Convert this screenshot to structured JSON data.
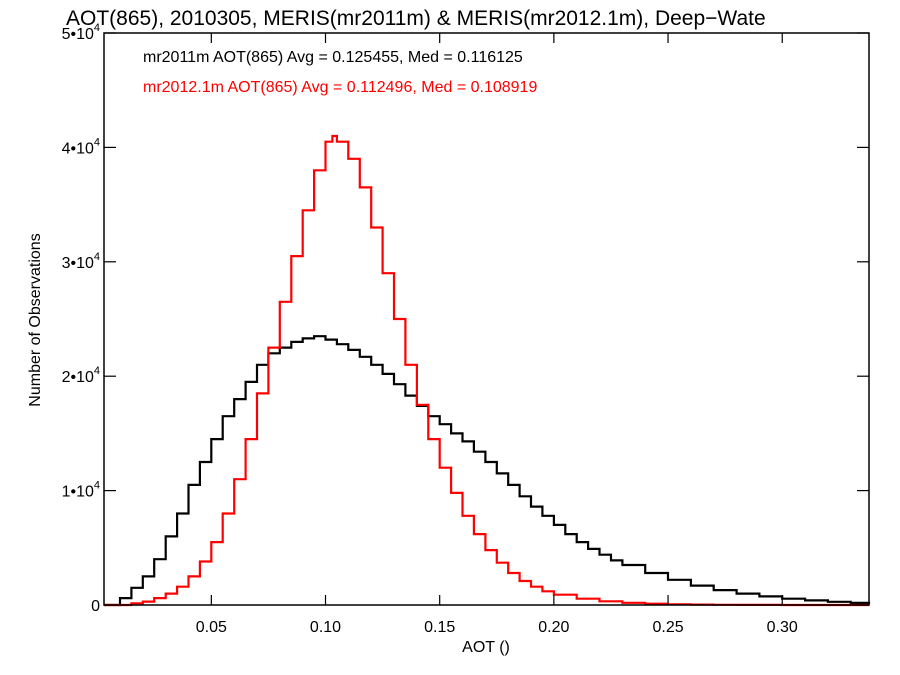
{
  "chart_data": {
    "type": "line",
    "title": "AOT(865), 2010305, MERIS(mr2011m) & MERIS(mr2012.1m), Deep−Wate",
    "xlabel": "AOT ()",
    "ylabel": "Number of Observations",
    "xlim": [
      0.003,
      0.338
    ],
    "ylim": [
      0,
      50000
    ],
    "x_ticks": [
      {
        "value": 0.05,
        "label": "0.05"
      },
      {
        "value": 0.1,
        "label": "0.10"
      },
      {
        "value": 0.15,
        "label": "0.15"
      },
      {
        "value": 0.2,
        "label": "0.20"
      },
      {
        "value": 0.25,
        "label": "0.25"
      },
      {
        "value": 0.3,
        "label": "0.30"
      }
    ],
    "y_ticks": [
      {
        "value": 0,
        "base": "0",
        "exp": ""
      },
      {
        "value": 10000,
        "base": "1•10",
        "exp": "4"
      },
      {
        "value": 20000,
        "base": "2•10",
        "exp": "4"
      },
      {
        "value": 30000,
        "base": "3•10",
        "exp": "4"
      },
      {
        "value": 40000,
        "base": "4•10",
        "exp": "4"
      },
      {
        "value": 50000,
        "base": "5•10",
        "exp": "4"
      }
    ],
    "annotations": [
      {
        "text": "mr2011m AOT(865) Avg = 0.125455, Med = 0.116125",
        "color": "#000000"
      },
      {
        "text": "mr2012.1m AOT(865) Avg = 0.112496, Med = 0.108919",
        "color": "#ff0000"
      }
    ],
    "series": [
      {
        "color": "#000000",
        "x": [
          0.003,
          0.01,
          0.015,
          0.02,
          0.025,
          0.03,
          0.035,
          0.04,
          0.045,
          0.05,
          0.055,
          0.06,
          0.065,
          0.07,
          0.075,
          0.08,
          0.085,
          0.09,
          0.095,
          0.1,
          0.105,
          0.11,
          0.115,
          0.12,
          0.125,
          0.13,
          0.135,
          0.14,
          0.145,
          0.15,
          0.155,
          0.16,
          0.165,
          0.17,
          0.175,
          0.18,
          0.185,
          0.19,
          0.195,
          0.2,
          0.205,
          0.21,
          0.215,
          0.22,
          0.225,
          0.23,
          0.24,
          0.25,
          0.26,
          0.27,
          0.28,
          0.29,
          0.3,
          0.31,
          0.32,
          0.33,
          0.338
        ],
        "y": [
          0,
          600,
          1500,
          2500,
          4000,
          6000,
          8000,
          10500,
          12500,
          14500,
          16500,
          18000,
          19500,
          21000,
          22000,
          22500,
          23000,
          23300,
          23500,
          23200,
          22800,
          22300,
          21700,
          21000,
          20200,
          19300,
          18300,
          17400,
          16500,
          15800,
          15000,
          14300,
          13400,
          12500,
          11500,
          10500,
          9500,
          8600,
          7800,
          7000,
          6200,
          5500,
          4900,
          4400,
          3900,
          3500,
          2800,
          2200,
          1700,
          1300,
          1000,
          750,
          550,
          400,
          280,
          180,
          100
        ]
      },
      {
        "color": "#ff0000",
        "x": [
          0.003,
          0.01,
          0.015,
          0.02,
          0.025,
          0.03,
          0.035,
          0.04,
          0.045,
          0.05,
          0.055,
          0.06,
          0.065,
          0.07,
          0.075,
          0.08,
          0.085,
          0.09,
          0.095,
          0.1,
          0.103,
          0.105,
          0.11,
          0.115,
          0.12,
          0.125,
          0.13,
          0.135,
          0.14,
          0.145,
          0.15,
          0.155,
          0.16,
          0.165,
          0.17,
          0.175,
          0.18,
          0.185,
          0.19,
          0.195,
          0.2,
          0.21,
          0.22,
          0.23,
          0.24,
          0.25,
          0.26,
          0.27,
          0.28,
          0.3,
          0.338
        ],
        "y": [
          0,
          0,
          150,
          300,
          600,
          1000,
          1600,
          2500,
          3800,
          5500,
          8000,
          11000,
          14500,
          18500,
          22500,
          26500,
          30500,
          34500,
          38000,
          40500,
          41000,
          40500,
          39000,
          36500,
          33000,
          29000,
          25000,
          21000,
          17500,
          14500,
          12000,
          9800,
          7800,
          6200,
          4800,
          3700,
          2800,
          2100,
          1600,
          1200,
          900,
          550,
          320,
          190,
          110,
          65,
          35,
          20,
          10,
          0,
          0
        ]
      }
    ],
    "grid": false,
    "legend": "none"
  }
}
